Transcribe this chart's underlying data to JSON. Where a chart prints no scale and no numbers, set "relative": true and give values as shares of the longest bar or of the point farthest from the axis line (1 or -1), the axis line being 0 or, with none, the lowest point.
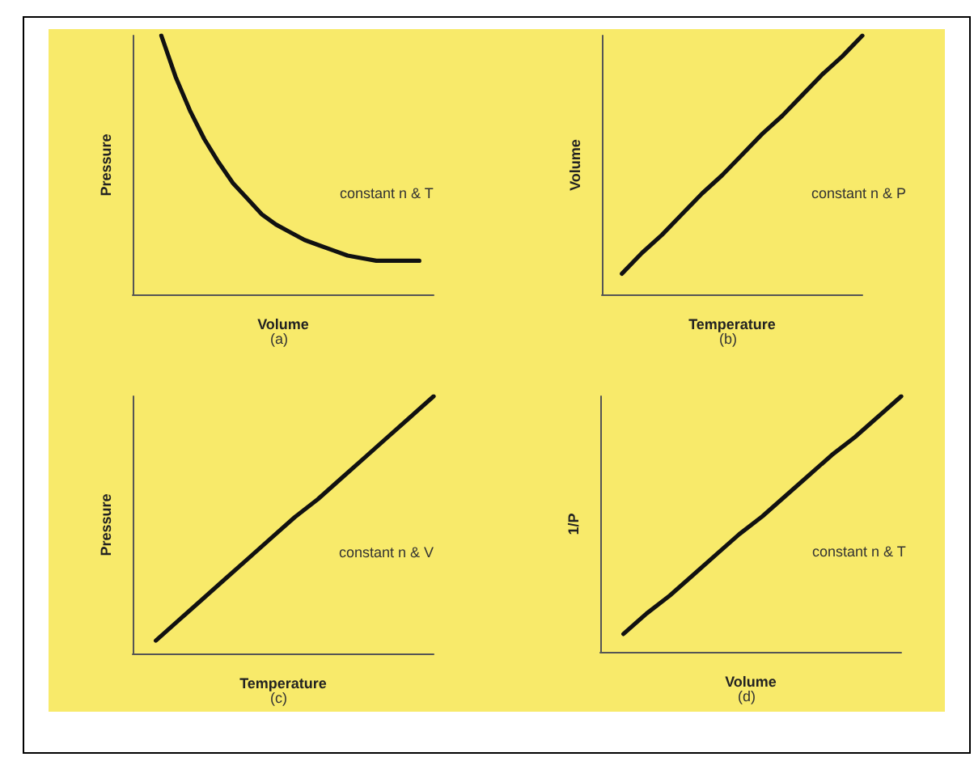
{
  "chart_data": [
    {
      "type": "line",
      "relative": true,
      "marker": "none",
      "color": "#111111",
      "xlabel": "Volume",
      "ylabel": "Pressure",
      "annotations": [
        "constant n & T",
        "(a)"
      ],
      "categories": [
        null,
        null,
        null,
        null,
        null,
        null,
        null,
        null,
        null,
        null,
        null,
        null,
        null,
        null,
        null,
        null,
        null,
        null,
        null,
        null,
        null,
        null
      ],
      "values": [
        null,
        null,
        1,
        0.84,
        0.71,
        0.6,
        0.51,
        0.43,
        0.37,
        0.31,
        0.27,
        0.24,
        0.21,
        0.19,
        0.17,
        0.15,
        0.14,
        0.13,
        0.13,
        0.13,
        0.13,
        null
      ]
    },
    {
      "type": "line",
      "relative": true,
      "marker": "none",
      "color": "#111111",
      "xlabel": "Temperature",
      "ylabel": "Volume",
      "annotations": [
        "constant n & P",
        "(b)"
      ],
      "categories": [
        null,
        null,
        null,
        null,
        null,
        null,
        null,
        null,
        null,
        null,
        null,
        null,
        null,
        null
      ],
      "values": [
        null,
        0.08,
        0.16,
        0.23,
        0.31,
        0.39,
        0.46,
        0.54,
        0.62,
        0.69,
        0.77,
        0.85,
        0.92,
        1
      ]
    },
    {
      "type": "line",
      "relative": true,
      "marker": "none",
      "color": "#111111",
      "xlabel": "Temperature",
      "ylabel": "Pressure",
      "annotations": [
        "constant n & V",
        "(c)"
      ],
      "categories": [
        null,
        null,
        null,
        null,
        null,
        null,
        null,
        null,
        null,
        null,
        null,
        null,
        null,
        null
      ],
      "values": [
        null,
        0.05,
        0.13,
        0.21,
        0.29,
        0.37,
        0.45,
        0.53,
        0.6,
        0.68,
        0.76,
        0.84,
        0.92,
        1
      ]
    },
    {
      "type": "line",
      "relative": true,
      "marker": "none",
      "color": "#111111",
      "xlabel": "Volume",
      "ylabel": "1/P",
      "annotations": [
        "constant n & T",
        "(d)"
      ],
      "categories": [
        null,
        null,
        null,
        null,
        null,
        null,
        null,
        null,
        null,
        null,
        null,
        null,
        null,
        null
      ],
      "values": [
        null,
        0.07,
        0.15,
        0.22,
        0.3,
        0.38,
        0.46,
        0.53,
        0.61,
        0.69,
        0.77,
        0.84,
        0.92,
        1
      ]
    }
  ]
}
